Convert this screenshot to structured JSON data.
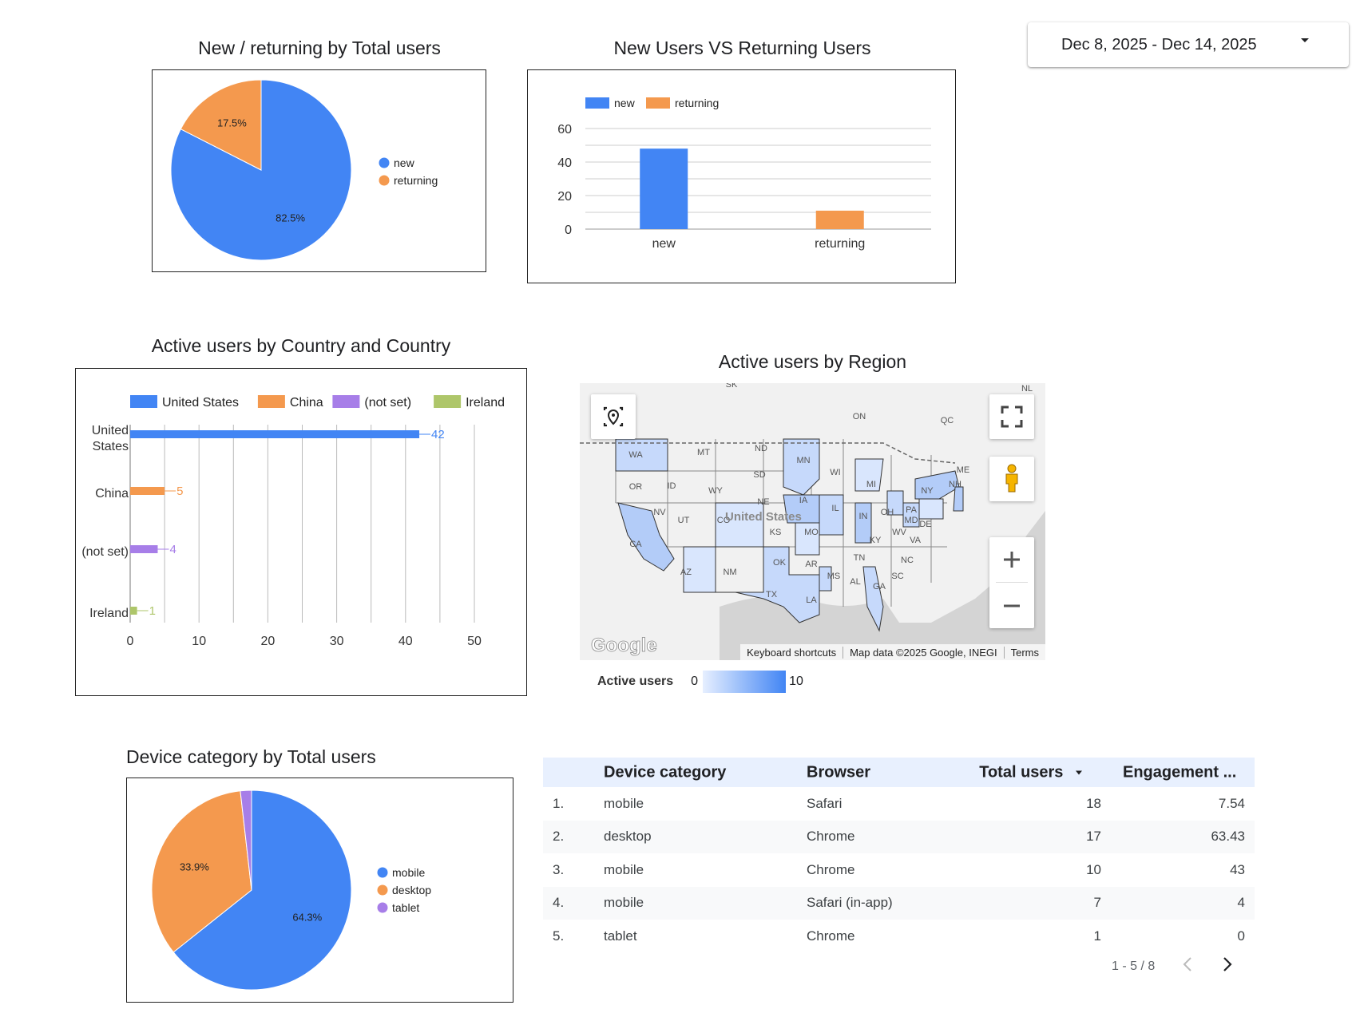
{
  "date_range": {
    "label": "Dec 8, 2025 - Dec 14, 2025"
  },
  "pie_new_returning": {
    "title": "New / returning by Total users",
    "legend": [
      "new",
      "returning"
    ],
    "slices": [
      {
        "label": "new",
        "value": 82.5,
        "text": "82.5%",
        "color": "#4285f4"
      },
      {
        "label": "returning",
        "value": 17.5,
        "text": "17.5%",
        "color": "#f4994e"
      }
    ]
  },
  "bar_new_returning": {
    "title": "New Users VS Returning Users",
    "legend": [
      "new",
      "returning"
    ],
    "categories": [
      "new",
      "returning"
    ],
    "values": [
      48,
      11
    ],
    "colors": [
      "#4285f4",
      "#f4994e"
    ],
    "y_ticks": [
      "60",
      "40",
      "20",
      "0"
    ],
    "ylim": [
      0,
      60
    ]
  },
  "hbar_country": {
    "title": "Active users by Country and Country",
    "legend": [
      "United States",
      "China",
      "(not set)",
      "Ireland"
    ],
    "category_labels": [
      [
        "United",
        "States"
      ],
      [
        "China"
      ],
      [
        "(not set)"
      ],
      [
        "Ireland"
      ]
    ],
    "values": [
      42,
      5,
      4,
      1
    ],
    "value_labels": [
      "42",
      "5",
      "4",
      "1"
    ],
    "colors": [
      "#4285f4",
      "#f4994e",
      "#a77ee8",
      "#aec66a"
    ],
    "x_ticks": [
      "0",
      "10",
      "20",
      "30",
      "40",
      "50"
    ],
    "xlim": [
      0,
      50
    ]
  },
  "map_region": {
    "title": "Active users by Region",
    "country_label": "United States",
    "state_labels": [
      "WA",
      "OR",
      "CA",
      "NV",
      "ID",
      "MT",
      "WY",
      "UT",
      "AZ",
      "NM",
      "ND",
      "SD",
      "NE",
      "CO",
      "KS",
      "OK",
      "TX",
      "MN",
      "IA",
      "MO",
      "AR",
      "LA",
      "WI",
      "IL",
      "MS",
      "AL",
      "MI",
      "IN",
      "KY",
      "TN",
      "GA",
      "OH",
      "WV",
      "VA",
      "NC",
      "SC",
      "PA",
      "NY",
      "ME",
      "NH",
      "MD",
      "DE",
      "SK",
      "ON",
      "QC",
      "NL"
    ],
    "google_logo": "Google",
    "footer": [
      "Keyboard shortcuts",
      "Map data ©2025 Google, INEGI",
      "Terms"
    ],
    "legend_title": "Active users",
    "legend_min": "0",
    "legend_max": "10"
  },
  "pie_device": {
    "title": "Device category by Total users",
    "legend": [
      "mobile",
      "desktop",
      "tablet"
    ],
    "slices": [
      {
        "label": "mobile",
        "value": 64.3,
        "text": "64.3%",
        "color": "#4285f4"
      },
      {
        "label": "desktop",
        "value": 33.9,
        "text": "33.9%",
        "color": "#f4994e"
      },
      {
        "label": "tablet",
        "value": 1.8,
        "text": "",
        "color": "#a77ee8"
      }
    ]
  },
  "device_table": {
    "headers": [
      "Device category",
      "Browser",
      "Total users",
      "Engagement ..."
    ],
    "rows": [
      {
        "idx": "1.",
        "device": "mobile",
        "browser": "Safari",
        "users": "18",
        "eng": "7.54"
      },
      {
        "idx": "2.",
        "device": "desktop",
        "browser": "Chrome",
        "users": "17",
        "eng": "63.43"
      },
      {
        "idx": "3.",
        "device": "mobile",
        "browser": "Chrome",
        "users": "10",
        "eng": "43"
      },
      {
        "idx": "4.",
        "device": "mobile",
        "browser": "Safari (in-app)",
        "users": "7",
        "eng": "4"
      },
      {
        "idx": "5.",
        "device": "tablet",
        "browser": "Chrome",
        "users": "1",
        "eng": "0"
      }
    ],
    "pagination": "1 - 5 / 8"
  },
  "chart_data": [
    {
      "type": "pie",
      "title": "New / returning by Total users",
      "categories": [
        "new",
        "returning"
      ],
      "values": [
        82.5,
        17.5
      ]
    },
    {
      "type": "bar",
      "title": "New Users VS Returning Users",
      "categories": [
        "new",
        "returning"
      ],
      "values": [
        48,
        11
      ],
      "ylim": [
        0,
        60
      ]
    },
    {
      "type": "bar",
      "title": "Active users by Country and Country",
      "orientation": "horizontal",
      "categories": [
        "United States",
        "China",
        "(not set)",
        "Ireland"
      ],
      "values": [
        42,
        5,
        4,
        1
      ],
      "xlim": [
        0,
        50
      ]
    },
    {
      "type": "pie",
      "title": "Device category by Total users",
      "categories": [
        "mobile",
        "desktop",
        "tablet"
      ],
      "values": [
        64.3,
        33.9,
        1.8
      ]
    }
  ]
}
